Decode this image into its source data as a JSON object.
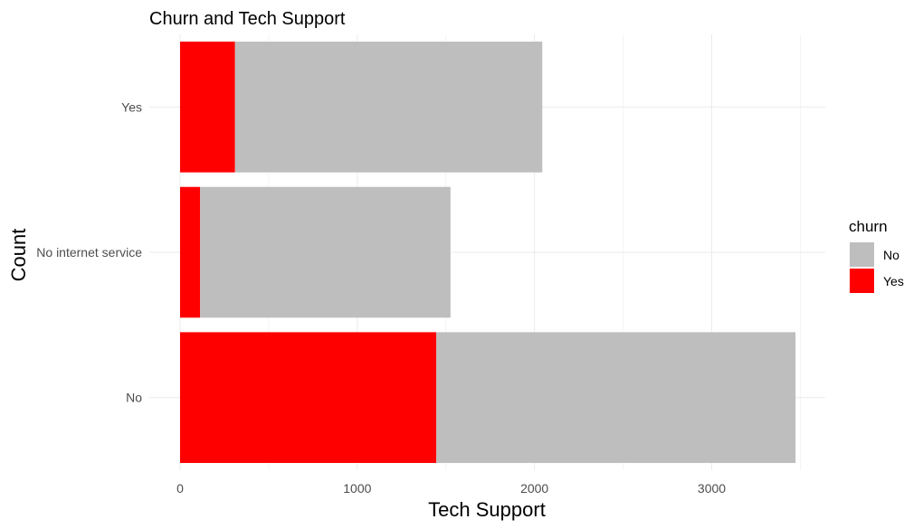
{
  "chart_data": {
    "type": "bar",
    "orientation": "horizontal",
    "stacked": true,
    "title": "Churn and Tech Support",
    "xlabel": "Tech Support",
    "ylabel": "Count",
    "categories": [
      "No",
      "No internet service",
      "Yes"
    ],
    "series": [
      {
        "name": "Yes",
        "color": "#ff0000",
        "values": [
          1446,
          113,
          310
        ]
      },
      {
        "name": "No",
        "color": "#bebebe",
        "values": [
          2027,
          1413,
          1734
        ]
      }
    ],
    "xlim": [
      0,
      3650
    ],
    "xticks": [
      0,
      1000,
      2000,
      3000
    ],
    "grid": true,
    "legend": {
      "title": "churn",
      "position": "right",
      "items": [
        {
          "label": "No",
          "color": "#bebebe"
        },
        {
          "label": "Yes",
          "color": "#ff0000"
        }
      ]
    }
  }
}
